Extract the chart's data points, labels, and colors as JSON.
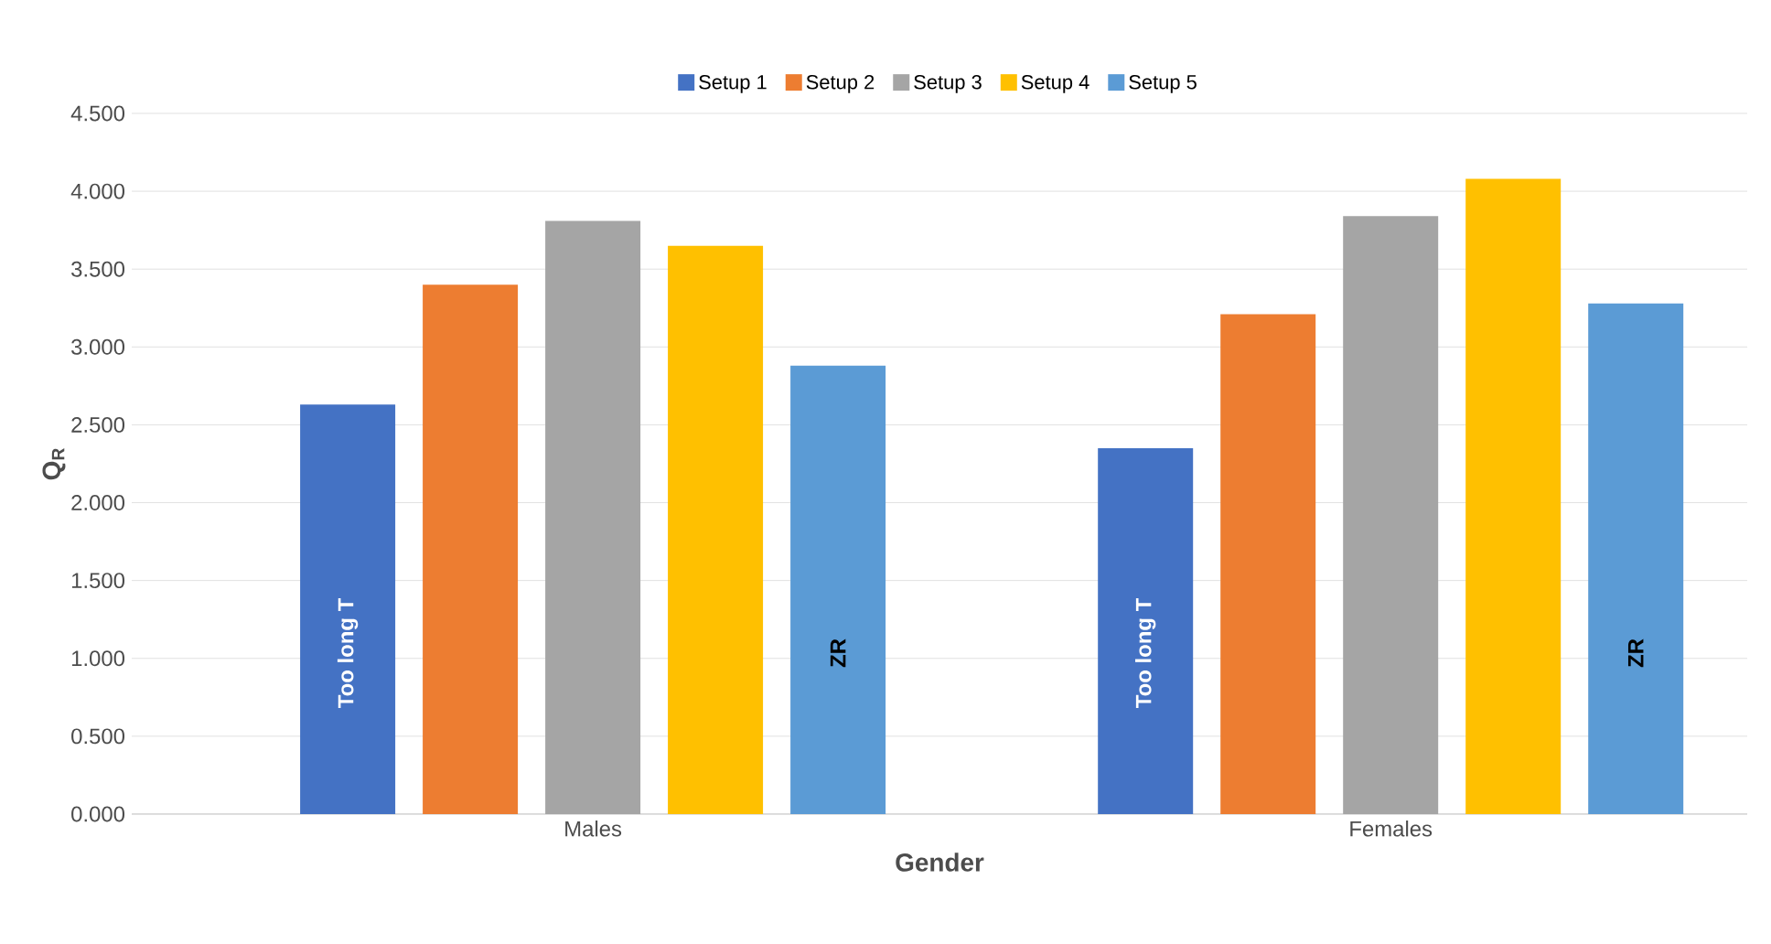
{
  "chart_data": {
    "type": "bar",
    "xlabel": "Gender",
    "ylabel": "Q$_{R}$",
    "categories": [
      "Males",
      "Females"
    ],
    "series": [
      {
        "name": "Setup 1",
        "color": "#4472c4",
        "values": [
          2.63,
          2.35
        ],
        "value_labels": [
          "Too long T",
          "Too long T"
        ]
      },
      {
        "name": "Setup 2",
        "color": "#ed7d31",
        "values": [
          3.4,
          3.21
        ]
      },
      {
        "name": "Setup 3",
        "color": "#a5a5a5",
        "values": [
          3.81,
          3.84
        ]
      },
      {
        "name": "Setup 4",
        "color": "#ffc000",
        "values": [
          3.65,
          4.08
        ]
      },
      {
        "name": "Setup 5",
        "color": "#5b9bd5",
        "values": [
          2.88,
          3.28
        ],
        "value_labels": [
          "ZR",
          "ZR"
        ]
      }
    ],
    "ylim": [
      0,
      4.5
    ],
    "yticks": [
      {
        "value": 0,
        "label": "0.000"
      },
      {
        "value": 0.5,
        "label": "0.500"
      },
      {
        "value": 1,
        "label": "1.000"
      },
      {
        "value": 1.5,
        "label": "1.500"
      },
      {
        "value": 2,
        "label": "2.000"
      },
      {
        "value": 2.5,
        "label": "2.500"
      },
      {
        "value": 3,
        "label": "3.000"
      },
      {
        "value": 3.5,
        "label": "3.500"
      },
      {
        "value": 4,
        "label": "4.000"
      },
      {
        "value": 4.5,
        "label": "4.500"
      }
    ],
    "grid": "y",
    "legend": "top"
  }
}
